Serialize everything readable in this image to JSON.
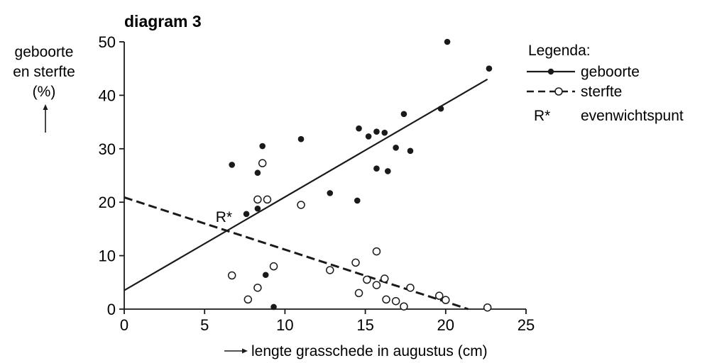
{
  "chart_data": {
    "type": "scatter",
    "title": "diagram 3",
    "ylabel_lines": [
      "geboorte",
      "en sterfte",
      "(%)"
    ],
    "xlabel": "lengte grasschede in augustus (cm)",
    "xlim": [
      0,
      25
    ],
    "ylim": [
      0,
      50
    ],
    "x_ticks": [
      0,
      5,
      10,
      15,
      20,
      25
    ],
    "y_ticks": [
      0,
      10,
      20,
      30,
      40,
      50
    ],
    "grid": false,
    "legend": {
      "position": "top-right",
      "title": "Legenda:",
      "items": [
        {
          "key": "geboorte",
          "label": "geboorte",
          "style": "solid-filled"
        },
        {
          "key": "sterfte",
          "label": "sterfte",
          "style": "dashed-open"
        },
        {
          "key": "rstar",
          "symbol": "R*",
          "label": "evenwichtspunt"
        }
      ]
    },
    "series": [
      {
        "name": "geboorte",
        "marker": "filled",
        "line": "solid",
        "points": [
          [
            6.7,
            27
          ],
          [
            7.6,
            17.8
          ],
          [
            8.3,
            18.8
          ],
          [
            8.3,
            25.5
          ],
          [
            8.6,
            30.5
          ],
          [
            8.8,
            6.4
          ],
          [
            9.3,
            0.4
          ],
          [
            11.0,
            31.8
          ],
          [
            12.8,
            21.7
          ],
          [
            14.5,
            20.3
          ],
          [
            14.6,
            33.8
          ],
          [
            15.2,
            32.3
          ],
          [
            15.7,
            26.3
          ],
          [
            15.7,
            33.2
          ],
          [
            16.2,
            33.0
          ],
          [
            16.4,
            25.8
          ],
          [
            16.9,
            30.2
          ],
          [
            17.4,
            36.5
          ],
          [
            17.8,
            29.6
          ],
          [
            19.7,
            37.5
          ],
          [
            20.1,
            50
          ],
          [
            22.7,
            45
          ]
        ],
        "trend": [
          [
            0,
            3.5
          ],
          [
            22.6,
            43.0
          ]
        ]
      },
      {
        "name": "sterfte",
        "marker": "open",
        "line": "dashed",
        "points": [
          [
            6.7,
            6.3
          ],
          [
            7.7,
            1.8
          ],
          [
            8.3,
            4.0
          ],
          [
            8.3,
            20.5
          ],
          [
            8.6,
            27.3
          ],
          [
            8.9,
            20.5
          ],
          [
            9.3,
            8.0
          ],
          [
            11.0,
            19.5
          ],
          [
            12.8,
            7.3
          ],
          [
            14.4,
            8.7
          ],
          [
            14.6,
            3.0
          ],
          [
            15.1,
            5.5
          ],
          [
            15.7,
            10.8
          ],
          [
            15.7,
            4.5
          ],
          [
            16.2,
            5.7
          ],
          [
            16.3,
            1.8
          ],
          [
            16.9,
            1.5
          ],
          [
            17.4,
            0.5
          ],
          [
            17.8,
            4.0
          ],
          [
            19.6,
            2.5
          ],
          [
            20.0,
            1.7
          ],
          [
            22.6,
            0.3
          ]
        ],
        "trend": [
          [
            0,
            20.9
          ],
          [
            21.4,
            0
          ]
        ]
      }
    ],
    "annotations": [
      {
        "text": "R*",
        "x": 6.2,
        "y": 16.3
      }
    ]
  }
}
